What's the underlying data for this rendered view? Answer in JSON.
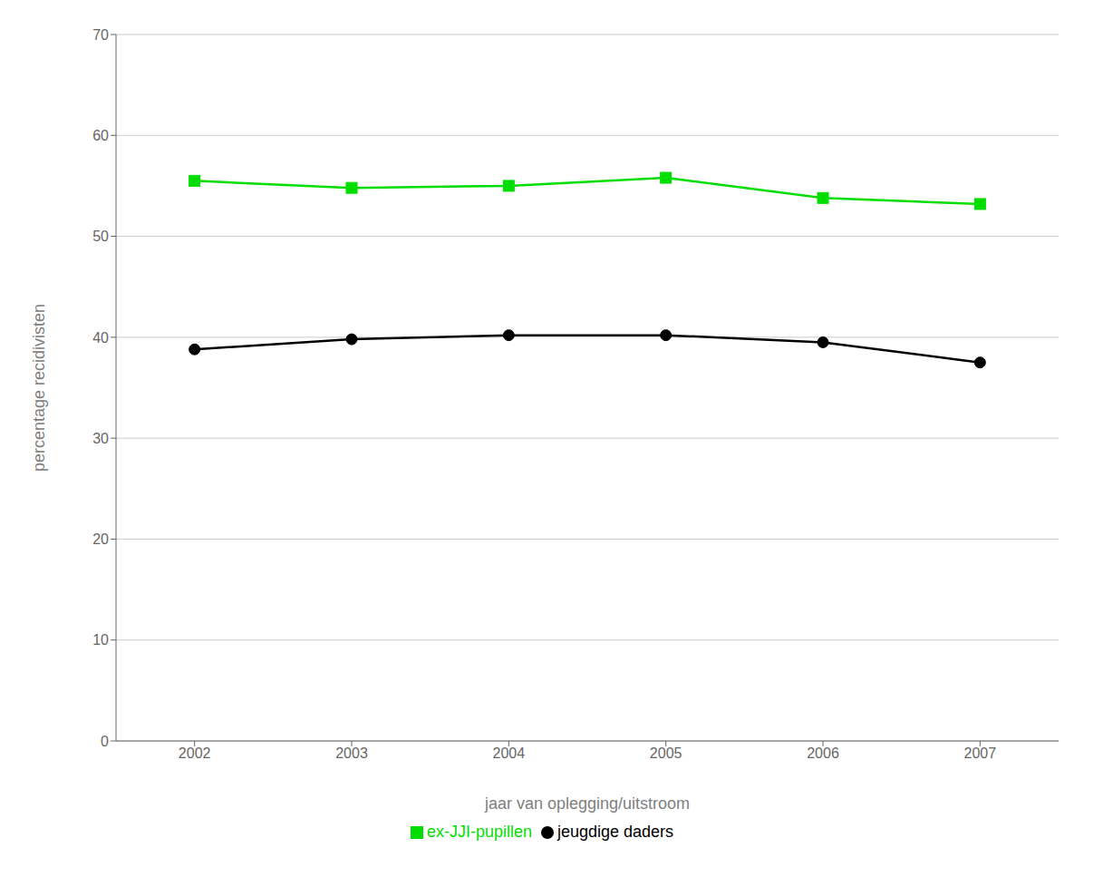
{
  "chart_data": {
    "type": "line",
    "x": [
      2002,
      2003,
      2004,
      2005,
      2006,
      2007
    ],
    "xlabel": "jaar van oplegging/uitstroom",
    "ylabel": "percentage recidivisten",
    "xlim": [
      2001.5,
      2007.5
    ],
    "xticks": [
      2002,
      2003,
      2004,
      2005,
      2006,
      2007
    ],
    "ylim": [
      0,
      70
    ],
    "yticks": [
      0,
      10,
      20,
      30,
      40,
      50,
      60,
      70
    ],
    "grid": true,
    "legend": "bottom",
    "series": [
      {
        "name": "ex-JJI-pupillen",
        "color": "#00dd00",
        "marker": "square",
        "values": [
          55.5,
          54.8,
          55.0,
          55.8,
          53.8,
          53.2
        ]
      },
      {
        "name": "jeugdige daders",
        "color": "#000000",
        "marker": "circle",
        "values": [
          38.8,
          39.8,
          40.2,
          40.2,
          39.5,
          37.5
        ]
      }
    ]
  }
}
